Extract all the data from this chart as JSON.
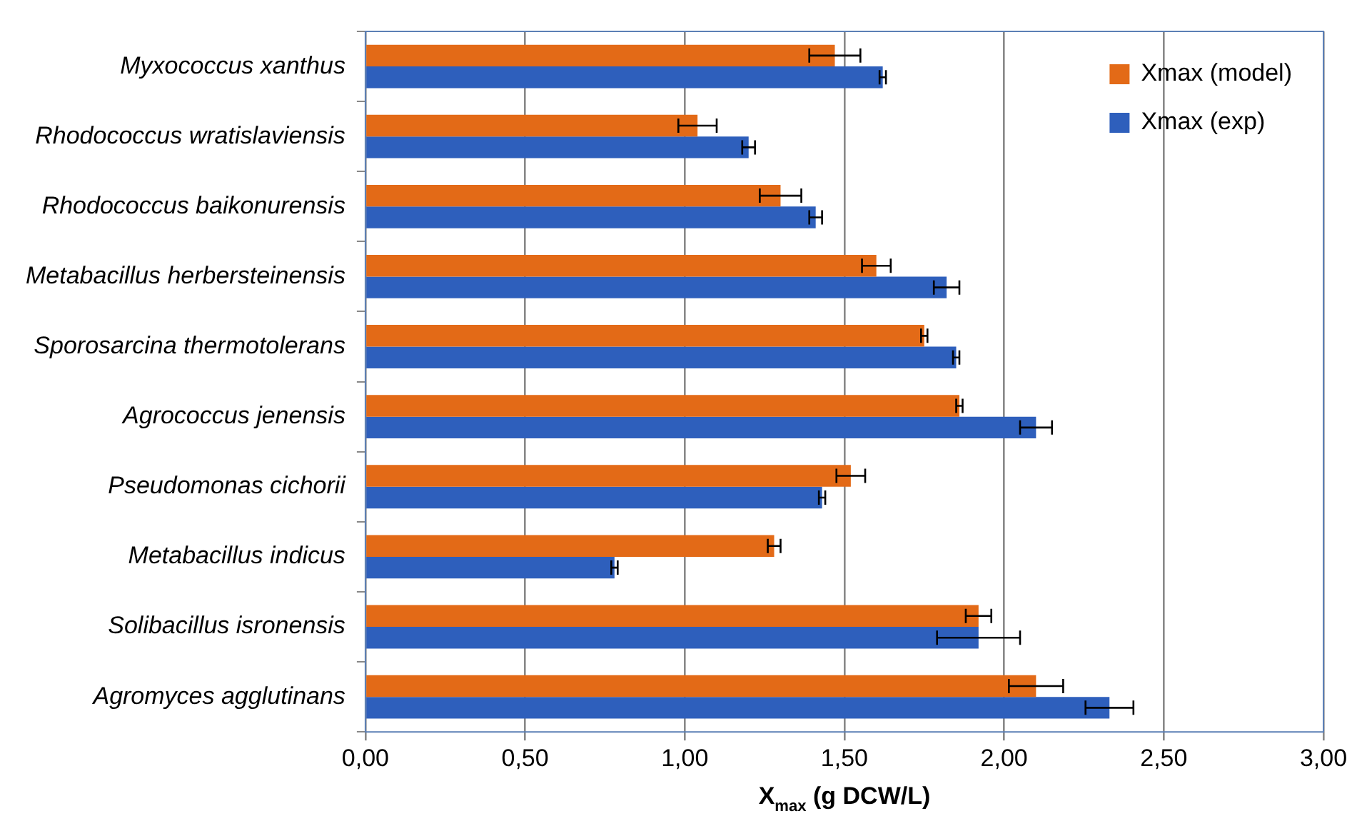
{
  "chart_data": {
    "type": "bar",
    "orientation": "horizontal",
    "xlabel": "X$_{max}$ (g DCW/L)",
    "categories": [
      "Myxococcus xanthus",
      "Rhodococcus wratislaviensis",
      "Rhodococcus baikonurensis",
      "Metabacillus herbersteinensis",
      "Sporosarcina thermotolerans",
      "Agrococcus jenensis",
      "Pseudomonas cichorii",
      "Metabacillus indicus",
      "Solibacillus isronensis",
      "Agromyces agglutinans"
    ],
    "series": [
      {
        "name": "Xmax (model)",
        "color": "#e36a17",
        "values": [
          1.47,
          1.04,
          1.3,
          1.6,
          1.75,
          1.86,
          1.52,
          1.28,
          1.92,
          2.1
        ],
        "errors": [
          0.08,
          0.06,
          0.065,
          0.045,
          0.01,
          0.01,
          0.045,
          0.02,
          0.04,
          0.085
        ]
      },
      {
        "name": "Xmax (exp)",
        "color": "#2e5fbc",
        "values": [
          1.62,
          1.2,
          1.41,
          1.82,
          1.85,
          2.1,
          1.43,
          0.78,
          1.92,
          2.33
        ],
        "errors": [
          0.01,
          0.02,
          0.02,
          0.04,
          0.01,
          0.05,
          0.01,
          0.01,
          0.13,
          0.075
        ]
      }
    ],
    "xlim": [
      0,
      3
    ],
    "xticks": [
      {
        "value": 0,
        "label": "0,00"
      },
      {
        "value": 0.5,
        "label": "0,50"
      },
      {
        "value": 1,
        "label": "1,00"
      },
      {
        "value": 1.5,
        "label": "1,50"
      },
      {
        "value": 2,
        "label": "2,00"
      },
      {
        "value": 2.5,
        "label": "2,50"
      },
      {
        "value": 3,
        "label": "3,00"
      }
    ],
    "grid": "x",
    "legend": "top right"
  }
}
